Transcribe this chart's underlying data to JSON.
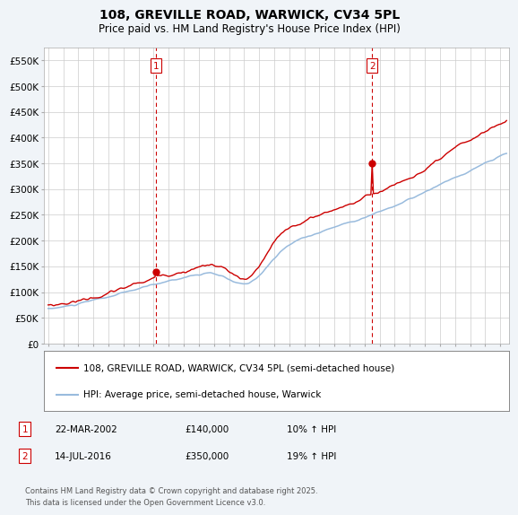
{
  "title": "108, GREVILLE ROAD, WARWICK, CV34 5PL",
  "subtitle": "Price paid vs. HM Land Registry's House Price Index (HPI)",
  "ylim": [
    0,
    575000
  ],
  "yticks": [
    0,
    50000,
    100000,
    150000,
    200000,
    250000,
    300000,
    350000,
    400000,
    450000,
    500000,
    550000
  ],
  "ytick_labels": [
    "£0",
    "£50K",
    "£100K",
    "£150K",
    "£200K",
    "£250K",
    "£300K",
    "£350K",
    "£400K",
    "£450K",
    "£500K",
    "£550K"
  ],
  "legend_line1": "108, GREVILLE ROAD, WARWICK, CV34 5PL (semi-detached house)",
  "legend_line2": "HPI: Average price, semi-detached house, Warwick",
  "line1_color": "#cc0000",
  "line2_color": "#99bbdd",
  "annotation1": [
    "1",
    "22-MAR-2002",
    "£140,000",
    "10% ↑ HPI"
  ],
  "annotation2": [
    "2",
    "14-JUL-2016",
    "£350,000",
    "19% ↑ HPI"
  ],
  "footer": "Contains HM Land Registry data © Crown copyright and database right 2025.\nThis data is licensed under the Open Government Licence v3.0.",
  "bg_color": "#f0f4f8",
  "plot_bg": "#ffffff",
  "grid_color": "#cccccc",
  "xlim_left": 1994.7,
  "xlim_right": 2025.6
}
